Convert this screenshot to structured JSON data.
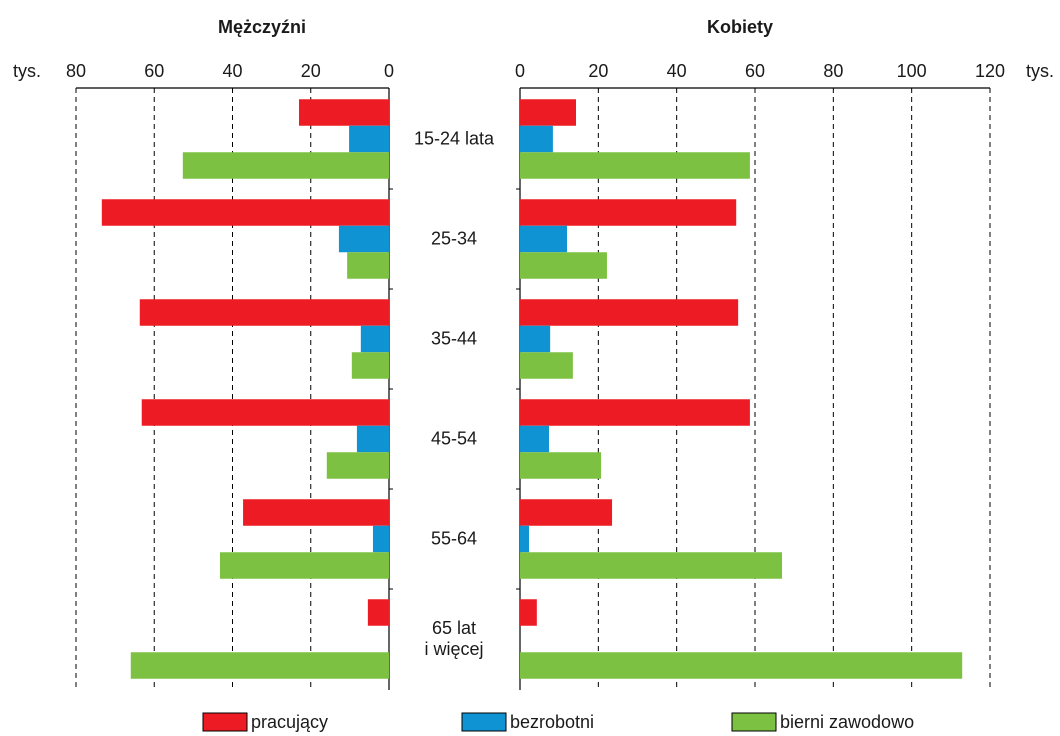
{
  "chart_data": {
    "type": "bar",
    "orientation": "horizontal",
    "categories": [
      "15-24 lata",
      "25-34",
      "35-44",
      "45-54",
      "55-64",
      "65 lat\ni więcej"
    ],
    "series": [
      {
        "name": "pracujący",
        "color": "#ed1c24"
      },
      {
        "name": "bezrobotni",
        "color": "#0f93d2"
      },
      {
        "name": "bierni zawodowo",
        "color": "#7dc142"
      }
    ],
    "grid": true,
    "panels": [
      {
        "title": "Mężczyźni",
        "xlabel": "tys.",
        "xlim": [
          80,
          0
        ],
        "xticks": [
          80,
          60,
          40,
          20,
          0
        ],
        "values": [
          [
            23,
            73.4,
            63.7,
            63.2,
            37.3,
            5.4
          ],
          [
            10.2,
            12.8,
            7.2,
            8.2,
            4.1,
            null
          ],
          [
            52.7,
            10.7,
            9.5,
            15.9,
            43.2,
            66
          ]
        ]
      },
      {
        "title": "Kobiety",
        "xlabel": "tys.",
        "xlim": [
          0,
          120
        ],
        "xticks": [
          0,
          20,
          40,
          60,
          80,
          100,
          120
        ],
        "values": [
          [
            14.3,
            55.2,
            55.7,
            58.7,
            23.5,
            4.3
          ],
          [
            8.4,
            12,
            7.7,
            7.4,
            2.3,
            null
          ],
          [
            58.7,
            22.2,
            13.5,
            20.7,
            66.9,
            112.9
          ]
        ]
      }
    ]
  }
}
